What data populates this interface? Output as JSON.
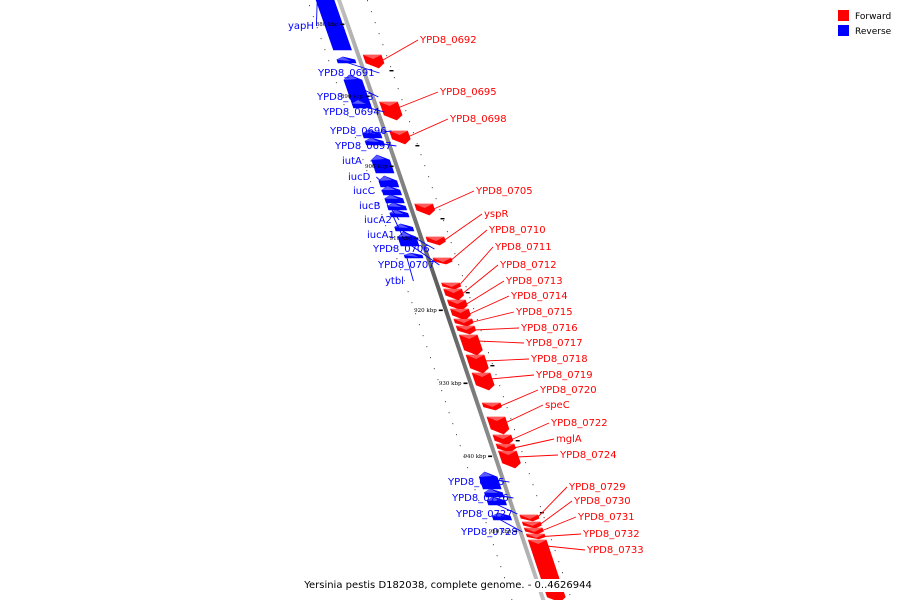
{
  "caption": "Yersinia pestis D182038, complete genome. - 0..4626944",
  "legend": [
    {
      "label": "Forward",
      "color": "#ff0000"
    },
    {
      "label": "Reverse",
      "color": "#0000ff"
    }
  ],
  "colors": {
    "forward": "#ff0000",
    "reverse": "#0000ff",
    "backbone": "#888888"
  },
  "ticks": [
    "880 kbp",
    "890 kbp",
    "900 kbp",
    "910 kbp",
    "920 kbp",
    "930 kbp",
    "940 kbp",
    "950 kbp"
  ],
  "genes": [
    {
      "name": "yapH",
      "strand": "reverse"
    },
    {
      "name": "YPD8_0691",
      "strand": "reverse"
    },
    {
      "name": "YPD8_0693",
      "strand": "reverse"
    },
    {
      "name": "YPD8_0694",
      "strand": "reverse"
    },
    {
      "name": "YPD8_0696",
      "strand": "reverse"
    },
    {
      "name": "YPD8_0697",
      "strand": "reverse"
    },
    {
      "name": "iutA",
      "strand": "reverse"
    },
    {
      "name": "iucD",
      "strand": "reverse"
    },
    {
      "name": "iucC",
      "strand": "reverse"
    },
    {
      "name": "iucB",
      "strand": "reverse"
    },
    {
      "name": "iucA2",
      "strand": "reverse"
    },
    {
      "name": "iucA1",
      "strand": "reverse"
    },
    {
      "name": "YPD8_0706",
      "strand": "reverse"
    },
    {
      "name": "YPD8_0707",
      "strand": "reverse"
    },
    {
      "name": "ytbl",
      "strand": "reverse"
    },
    {
      "name": "YPD8_0725",
      "strand": "reverse"
    },
    {
      "name": "YPD8_0726",
      "strand": "reverse"
    },
    {
      "name": "YPD8_0727",
      "strand": "reverse"
    },
    {
      "name": "YPD8_0728",
      "strand": "reverse"
    },
    {
      "name": "YPD8_0692",
      "strand": "forward"
    },
    {
      "name": "YPD8_0695",
      "strand": "forward"
    },
    {
      "name": "YPD8_0698",
      "strand": "forward"
    },
    {
      "name": "YPD8_0705",
      "strand": "forward"
    },
    {
      "name": "yspR",
      "strand": "forward"
    },
    {
      "name": "YPD8_0710",
      "strand": "forward"
    },
    {
      "name": "YPD8_0711",
      "strand": "forward"
    },
    {
      "name": "YPD8_0712",
      "strand": "forward"
    },
    {
      "name": "YPD8_0713",
      "strand": "forward"
    },
    {
      "name": "YPD8_0714",
      "strand": "forward"
    },
    {
      "name": "YPD8_0715",
      "strand": "forward"
    },
    {
      "name": "YPD8_0716",
      "strand": "forward"
    },
    {
      "name": "YPD8_0717",
      "strand": "forward"
    },
    {
      "name": "YPD8_0718",
      "strand": "forward"
    },
    {
      "name": "YPD8_0719",
      "strand": "forward"
    },
    {
      "name": "YPD8_0720",
      "strand": "forward"
    },
    {
      "name": "speC",
      "strand": "forward"
    },
    {
      "name": "YPD8_0722",
      "strand": "forward"
    },
    {
      "name": "mglA",
      "strand": "forward"
    },
    {
      "name": "YPD8_0724",
      "strand": "forward"
    },
    {
      "name": "YPD8_0729",
      "strand": "forward"
    },
    {
      "name": "YPD8_0730",
      "strand": "forward"
    },
    {
      "name": "YPD8_0731",
      "strand": "forward"
    },
    {
      "name": "YPD8_0732",
      "strand": "forward"
    },
    {
      "name": "YPD8_0733",
      "strand": "forward"
    }
  ]
}
